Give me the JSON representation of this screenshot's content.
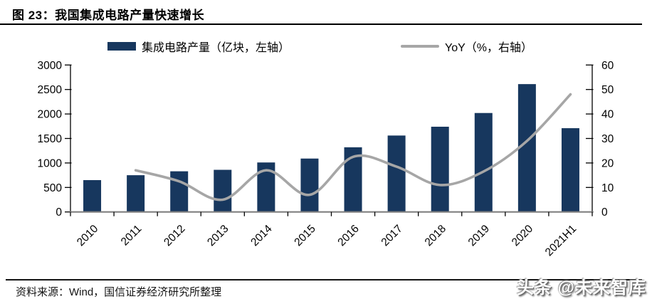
{
  "header": {
    "title": "图 23：我国集成电路产量快速增长"
  },
  "footer": {
    "source": "资料来源：Wind，国信证券经济研究所整理",
    "watermark": "头条 @未来智库"
  },
  "chart_data": {
    "type": "bar",
    "title": "我国集成电路产量快速增长",
    "categories": [
      "2010",
      "2011",
      "2012",
      "2013",
      "2014",
      "2015",
      "2016",
      "2017",
      "2018",
      "2019",
      "2020",
      "2021H1"
    ],
    "series": [
      {
        "name": "集成电路产量",
        "legend_label": "集成电路产量（亿块，左轴）",
        "type": "bar",
        "axis": "left",
        "color": "#17375E",
        "values": [
          650,
          750,
          830,
          860,
          1010,
          1090,
          1320,
          1560,
          1740,
          2020,
          2610,
          1710
        ]
      },
      {
        "name": "YoY",
        "legend_label": "YoY（%，右轴）",
        "type": "line",
        "axis": "right",
        "color": "#A6A6A6",
        "values": [
          null,
          17,
          12.5,
          5,
          17,
          7,
          22.5,
          18.5,
          11,
          16.5,
          29,
          48
        ]
      }
    ],
    "left_axis": {
      "min": 0,
      "max": 3000,
      "step": 500,
      "ticks": [
        "0",
        "500",
        "1000",
        "1500",
        "2000",
        "2500",
        "3000"
      ]
    },
    "right_axis": {
      "min": 0,
      "max": 60,
      "step": 10,
      "ticks": [
        "0",
        "10",
        "20",
        "30",
        "40",
        "50",
        "60"
      ]
    },
    "layout": {
      "grid": "off",
      "legend_position": "top",
      "x_label_rotation": -45
    }
  }
}
